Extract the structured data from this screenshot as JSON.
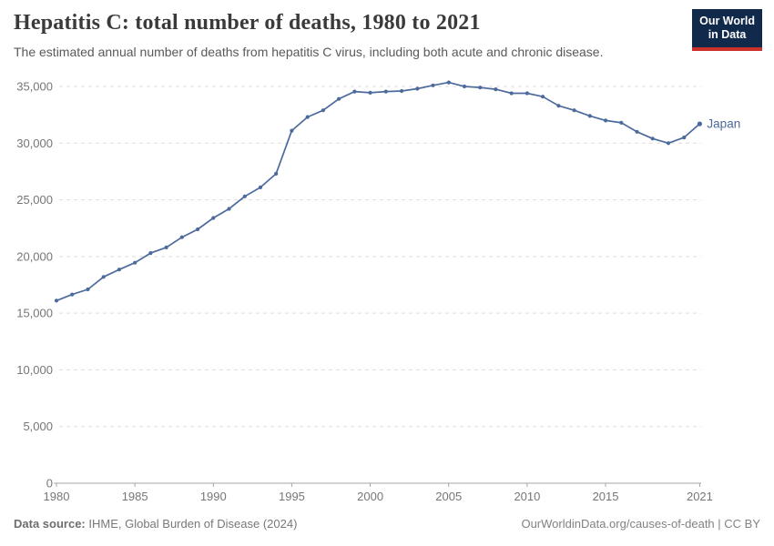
{
  "header": {
    "title": "Hepatitis C: total number of deaths, 1980 to 2021",
    "subtitle": "The estimated annual number of deaths from hepatitis C virus, including both acute and chronic disease.",
    "logo": {
      "line1": "Our World",
      "line2": "in Data"
    }
  },
  "chart_data": {
    "type": "line",
    "title": "Hepatitis C: total number of deaths, 1980 to 2021",
    "xlabel": "",
    "ylabel": "",
    "xlim": [
      1980,
      2021
    ],
    "ylim": [
      0,
      35000
    ],
    "grid": "horizontal-dashed",
    "legend_position": "end-of-line-label",
    "x": [
      1980,
      1981,
      1982,
      1983,
      1984,
      1985,
      1986,
      1987,
      1988,
      1989,
      1990,
      1991,
      1992,
      1993,
      1994,
      1995,
      1996,
      1997,
      1998,
      1999,
      2000,
      2001,
      2002,
      2003,
      2004,
      2005,
      2006,
      2007,
      2008,
      2009,
      2010,
      2011,
      2012,
      2013,
      2014,
      2015,
      2016,
      2017,
      2018,
      2019,
      2020,
      2021
    ],
    "series": [
      {
        "name": "Japan",
        "color": "#4c6a9c",
        "values": [
          16100,
          16650,
          17100,
          18200,
          18850,
          19450,
          20300,
          20800,
          21700,
          22400,
          23400,
          24200,
          25300,
          26100,
          27300,
          31100,
          32300,
          32900,
          33900,
          34550,
          34450,
          34550,
          34600,
          34800,
          35100,
          35350,
          35000,
          34900,
          34750,
          34400,
          34400,
          34100,
          33300,
          32900,
          32400,
          32000,
          31800,
          31000,
          30400,
          30000,
          30500,
          31700
        ]
      }
    ],
    "xticks": [
      1980,
      1985,
      1990,
      1995,
      2000,
      2005,
      2010,
      2015,
      2021
    ],
    "yticks": [
      0,
      5000,
      10000,
      15000,
      20000,
      25000,
      30000,
      35000
    ],
    "ytick_labels": [
      "0",
      "5,000",
      "10,000",
      "15,000",
      "20,000",
      "25,000",
      "30,000",
      "35,000"
    ],
    "entity_label": "Japan"
  },
  "footer": {
    "source_label": "Data source:",
    "source_text": " IHME, Global Burden of Disease (2024)",
    "credit": "OurWorldinData.org/causes-of-death | CC BY"
  },
  "colors": {
    "line": "#4c6a9c",
    "title": "#3a3a3a",
    "subtitle": "#595959",
    "tick_label": "#767676",
    "gridline": "#dcdcdc",
    "axis": "#a6a6a6",
    "logo_bg": "#112a4c",
    "logo_accent": "#cc312b"
  }
}
